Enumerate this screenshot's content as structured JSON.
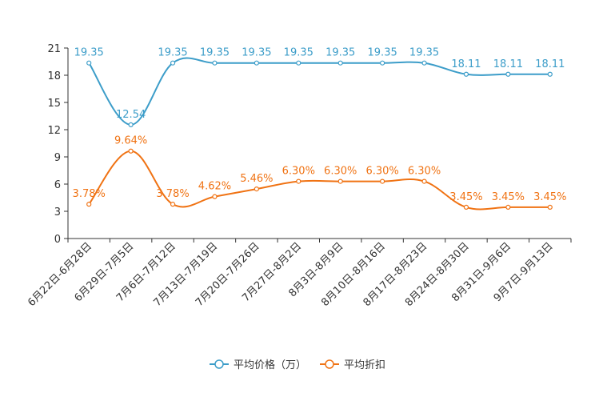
{
  "chart_data": {
    "type": "line",
    "title": "",
    "xlabel": "",
    "ylabel": "",
    "ylim": [
      0,
      21
    ],
    "yticks": [
      0,
      3,
      6,
      9,
      12,
      15,
      18,
      21
    ],
    "grid": false,
    "legend_position": "bottom-center",
    "categories": [
      "6月22日-6月28日",
      "6月29日-7月5日",
      "7月6日-7月12日",
      "7月13日-7月19日",
      "7月20日-7月26日",
      "7月27日-8月2日",
      "8月3日-8月9日",
      "8月10日-8月16日",
      "8月17日-8月23日",
      "8月24日-8月30日",
      "8月31日-9月6日",
      "9月7日-9月13日"
    ],
    "series": [
      {
        "name": "平均价格（万）",
        "color": "#3c9dc9",
        "values": [
          19.35,
          12.54,
          19.35,
          19.35,
          19.35,
          19.35,
          19.35,
          19.35,
          19.35,
          18.11,
          18.11,
          18.11
        ],
        "labels": [
          "19.35",
          "12.54",
          "19.35",
          "19.35",
          "19.35",
          "19.35",
          "19.35",
          "19.35",
          "19.35",
          "18.11",
          "18.11",
          "18.11"
        ]
      },
      {
        "name": "平均折扣",
        "color": "#f07314",
        "values": [
          3.78,
          9.64,
          3.78,
          4.62,
          5.46,
          6.3,
          6.3,
          6.3,
          6.3,
          3.45,
          3.45,
          3.45
        ],
        "labels": [
          "3.78%",
          "9.64%",
          "3.78%",
          "4.62%",
          "5.46%",
          "6.30%",
          "6.30%",
          "6.30%",
          "6.30%",
          "3.45%",
          "3.45%",
          "3.45%"
        ]
      }
    ]
  }
}
